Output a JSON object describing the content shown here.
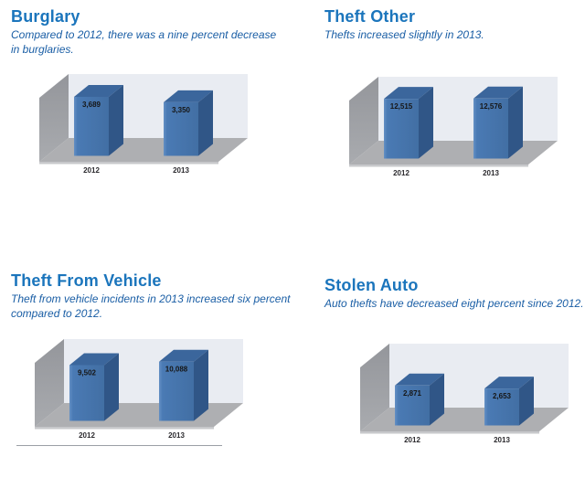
{
  "colors": {
    "title_blue": "#1B75BC",
    "subtitle_blue": "#1A5EA5",
    "bar_front": "#4A7AB4",
    "bar_front_hi": "#6490C4",
    "bar_front_lo": "#426FA4",
    "bar_top": "#3B669C",
    "bar_side": "#305687",
    "wall_back": "#E9ECF2",
    "wall_left_dark": "#94969B",
    "wall_left_light": "#A9ABAF",
    "floor": "#AEAFB2",
    "floor_edge": "#C7C8CB",
    "value_label": "#161616",
    "axis_label": "#2B2A2E",
    "divider": "#9BA0A6"
  },
  "chart_data": [
    {
      "type": "bar",
      "variant": "3d-column",
      "title": "Burglary",
      "subtitle": "Compared to 2012, there was a nine percent decrease in burglaries.",
      "categories": [
        "2012",
        "2013"
      ],
      "values": [
        3689,
        3350
      ],
      "value_labels": [
        "3,689",
        "3,350"
      ],
      "ylim": [
        0,
        4000
      ],
      "xlabel": "",
      "ylabel": "",
      "grid": false,
      "legend": false
    },
    {
      "type": "bar",
      "variant": "3d-column",
      "title": "Theft Other",
      "subtitle": "Thefts increased slightly in 2013.",
      "categories": [
        "2012",
        "2013"
      ],
      "values": [
        12515,
        12576
      ],
      "value_labels": [
        "12,515",
        "12,576"
      ],
      "ylim": [
        0,
        13400
      ],
      "xlabel": "",
      "ylabel": "",
      "grid": false,
      "legend": false
    },
    {
      "type": "bar",
      "variant": "3d-column",
      "title": "Theft From Vehicle",
      "subtitle": "Theft from vehicle incidents in 2013 increased six percent compared to 2012.",
      "categories": [
        "2012",
        "2013"
      ],
      "values": [
        9502,
        10088
      ],
      "value_labels": [
        "9,502",
        "10,088"
      ],
      "ylim": [
        0,
        10900
      ],
      "xlabel": "",
      "ylabel": "",
      "grid": false,
      "legend": false
    },
    {
      "type": "bar",
      "variant": "3d-column",
      "title": "Stolen Auto",
      "subtitle": "Auto thefts have decreased eight percent since 2012.",
      "categories": [
        "2012",
        "2013"
      ],
      "values": [
        2871,
        2653
      ],
      "value_labels": [
        "2,871",
        "2,653"
      ],
      "ylim": [
        0,
        4600
      ],
      "xlabel": "",
      "ylabel": "",
      "grid": false,
      "legend": false
    }
  ]
}
